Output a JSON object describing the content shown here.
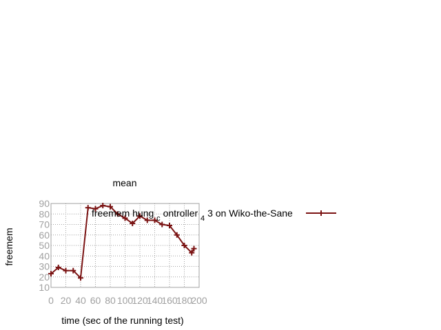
{
  "chart_data": {
    "type": "line",
    "title": "mean",
    "xlabel": "time (sec of the running test)",
    "ylabel": "freemem",
    "xlim": [
      0,
      200
    ],
    "ylim": [
      10,
      90
    ],
    "x_ticks": [
      0,
      20,
      40,
      60,
      80,
      100,
      120,
      140,
      160,
      180,
      200
    ],
    "y_ticks": [
      10,
      20,
      30,
      40,
      50,
      60,
      70,
      80,
      90
    ],
    "grid": true,
    "legend_position": "top-right",
    "colors": {
      "series": "#7a1212",
      "grid": "#a0a0a0",
      "tick_text": "#a0a0a0"
    },
    "series": [
      {
        "name": "freemem hung controller 4 3 on Wiko-the-Sane",
        "legend_parts": {
          "main": "freemem hung",
          "sub_c": "c",
          "ontroller": "ontroller",
          "sub_4": "4",
          "rest": "3 on",
          "device": "Wiko-the-Sane"
        },
        "x": [
          0,
          10,
          20,
          30,
          40,
          50,
          60,
          70,
          80,
          90,
          100,
          110,
          120,
          130,
          140,
          150,
          160,
          170,
          180,
          190,
          193
        ],
        "y": [
          23,
          29,
          26,
          26,
          19,
          86,
          85,
          88,
          87,
          80,
          76,
          71,
          78,
          74,
          74,
          70,
          69,
          60,
          50,
          43,
          47
        ]
      }
    ]
  }
}
